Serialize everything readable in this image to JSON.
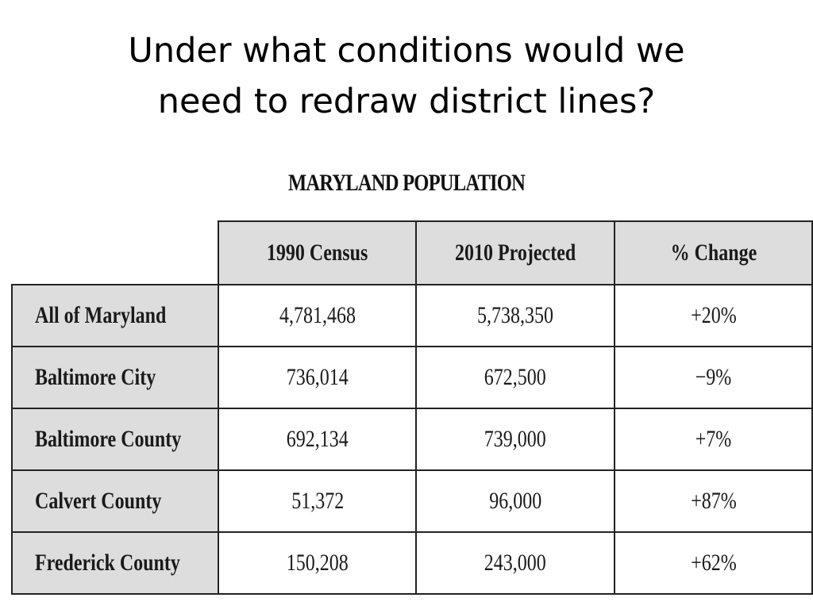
{
  "slide": {
    "title_line1": "Under what conditions would we",
    "title_line2": "need to redraw district lines?"
  },
  "table": {
    "caption": "MARYLAND POPULATION",
    "columns": [
      "1990 Census",
      "2010 Projected",
      "% Change"
    ],
    "rows": [
      {
        "label": "All of Maryland",
        "census_1990": "4,781,468",
        "projected_2010": "5,738,350",
        "change": "+20%"
      },
      {
        "label": "Baltimore City",
        "census_1990": "736,014",
        "projected_2010": "672,500",
        "change": "−9%"
      },
      {
        "label": "Baltimore County",
        "census_1990": "692,134",
        "projected_2010": "739,000",
        "change": "+7%"
      },
      {
        "label": "Calvert County",
        "census_1990": "51,372",
        "projected_2010": "96,000",
        "change": "+87%"
      },
      {
        "label": "Frederick County",
        "census_1990": "150,208",
        "projected_2010": "243,000",
        "change": "+62%"
      }
    ]
  }
}
